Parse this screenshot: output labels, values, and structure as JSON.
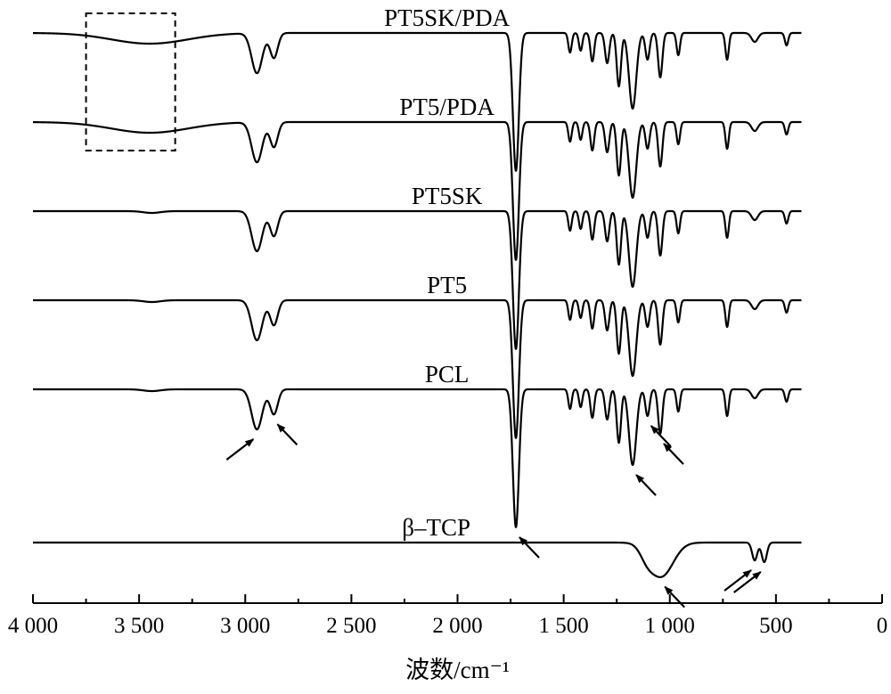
{
  "chart_data": {
    "type": "line",
    "title": "",
    "xlabel": "波数/cm⁻¹",
    "ylabel": "",
    "xlim": [
      4000,
      0
    ],
    "x_direction": "reversed",
    "grid": false,
    "xticks": [
      4000,
      3500,
      3000,
      2500,
      2000,
      1500,
      1000,
      500,
      0
    ],
    "xtick_labels": [
      "4 000",
      "3 500",
      "3 000",
      "2 500",
      "2 000",
      "1 500",
      "1 000",
      "500",
      "0"
    ],
    "x_range_measured": [
      4000,
      380
    ],
    "series": [
      {
        "name": "PT5SK/PDA",
        "baseline": 4.0,
        "peaks": [
          {
            "center": 3450,
            "depth": 0.12,
            "width": 180
          },
          {
            "center": 2945,
            "depth": 0.45,
            "width": 25
          },
          {
            "center": 2865,
            "depth": 0.28,
            "width": 18
          },
          {
            "center": 1725,
            "depth": 1.55,
            "width": 14
          },
          {
            "center": 1470,
            "depth": 0.22,
            "width": 8
          },
          {
            "center": 1420,
            "depth": 0.2,
            "width": 8
          },
          {
            "center": 1365,
            "depth": 0.32,
            "width": 9
          },
          {
            "center": 1295,
            "depth": 0.34,
            "width": 10
          },
          {
            "center": 1240,
            "depth": 0.6,
            "width": 10
          },
          {
            "center": 1175,
            "depth": 0.85,
            "width": 17
          },
          {
            "center": 1105,
            "depth": 0.3,
            "width": 10
          },
          {
            "center": 1045,
            "depth": 0.5,
            "width": 10
          },
          {
            "center": 960,
            "depth": 0.25,
            "width": 8
          },
          {
            "center": 730,
            "depth": 0.3,
            "width": 8
          },
          {
            "center": 600,
            "depth": 0.1,
            "width": 15
          },
          {
            "center": 450,
            "depth": 0.14,
            "width": 8
          }
        ]
      },
      {
        "name": "PT5/PDA",
        "baseline": 3.0,
        "peaks": [
          {
            "center": 3450,
            "depth": 0.12,
            "width": 180
          },
          {
            "center": 2945,
            "depth": 0.45,
            "width": 25
          },
          {
            "center": 2865,
            "depth": 0.28,
            "width": 18
          },
          {
            "center": 1725,
            "depth": 1.55,
            "width": 14
          },
          {
            "center": 1470,
            "depth": 0.22,
            "width": 8
          },
          {
            "center": 1420,
            "depth": 0.2,
            "width": 8
          },
          {
            "center": 1365,
            "depth": 0.32,
            "width": 9
          },
          {
            "center": 1295,
            "depth": 0.34,
            "width": 10
          },
          {
            "center": 1240,
            "depth": 0.6,
            "width": 10
          },
          {
            "center": 1175,
            "depth": 0.85,
            "width": 17
          },
          {
            "center": 1105,
            "depth": 0.3,
            "width": 10
          },
          {
            "center": 1045,
            "depth": 0.5,
            "width": 10
          },
          {
            "center": 960,
            "depth": 0.25,
            "width": 8
          },
          {
            "center": 730,
            "depth": 0.3,
            "width": 8
          },
          {
            "center": 600,
            "depth": 0.1,
            "width": 15
          },
          {
            "center": 450,
            "depth": 0.14,
            "width": 8
          }
        ]
      },
      {
        "name": "PT5SK",
        "baseline": 2.0,
        "peaks": [
          {
            "center": 3440,
            "depth": 0.02,
            "width": 40
          },
          {
            "center": 2945,
            "depth": 0.45,
            "width": 25
          },
          {
            "center": 2865,
            "depth": 0.28,
            "width": 18
          },
          {
            "center": 1725,
            "depth": 1.55,
            "width": 14
          },
          {
            "center": 1470,
            "depth": 0.22,
            "width": 8
          },
          {
            "center": 1420,
            "depth": 0.2,
            "width": 8
          },
          {
            "center": 1365,
            "depth": 0.32,
            "width": 9
          },
          {
            "center": 1295,
            "depth": 0.34,
            "width": 10
          },
          {
            "center": 1240,
            "depth": 0.6,
            "width": 10
          },
          {
            "center": 1175,
            "depth": 0.85,
            "width": 17
          },
          {
            "center": 1105,
            "depth": 0.3,
            "width": 10
          },
          {
            "center": 1045,
            "depth": 0.5,
            "width": 10
          },
          {
            "center": 960,
            "depth": 0.25,
            "width": 8
          },
          {
            "center": 730,
            "depth": 0.3,
            "width": 8
          },
          {
            "center": 600,
            "depth": 0.1,
            "width": 15
          },
          {
            "center": 450,
            "depth": 0.14,
            "width": 8
          }
        ]
      },
      {
        "name": "PT5",
        "baseline": 1.0,
        "peaks": [
          {
            "center": 3440,
            "depth": 0.02,
            "width": 40
          },
          {
            "center": 2945,
            "depth": 0.45,
            "width": 25
          },
          {
            "center": 2865,
            "depth": 0.28,
            "width": 18
          },
          {
            "center": 1725,
            "depth": 1.55,
            "width": 14
          },
          {
            "center": 1470,
            "depth": 0.22,
            "width": 8
          },
          {
            "center": 1420,
            "depth": 0.2,
            "width": 8
          },
          {
            "center": 1365,
            "depth": 0.32,
            "width": 9
          },
          {
            "center": 1295,
            "depth": 0.34,
            "width": 10
          },
          {
            "center": 1240,
            "depth": 0.6,
            "width": 10
          },
          {
            "center": 1175,
            "depth": 0.85,
            "width": 17
          },
          {
            "center": 1105,
            "depth": 0.3,
            "width": 10
          },
          {
            "center": 1045,
            "depth": 0.5,
            "width": 10
          },
          {
            "center": 960,
            "depth": 0.25,
            "width": 8
          },
          {
            "center": 730,
            "depth": 0.3,
            "width": 8
          },
          {
            "center": 600,
            "depth": 0.1,
            "width": 15
          },
          {
            "center": 450,
            "depth": 0.14,
            "width": 8
          }
        ]
      },
      {
        "name": "PCL",
        "baseline": 0.0,
        "peaks": [
          {
            "center": 3440,
            "depth": 0.02,
            "width": 40
          },
          {
            "center": 2945,
            "depth": 0.45,
            "width": 25
          },
          {
            "center": 2865,
            "depth": 0.28,
            "width": 18
          },
          {
            "center": 1725,
            "depth": 1.55,
            "width": 14
          },
          {
            "center": 1470,
            "depth": 0.22,
            "width": 8
          },
          {
            "center": 1420,
            "depth": 0.2,
            "width": 8
          },
          {
            "center": 1365,
            "depth": 0.32,
            "width": 9
          },
          {
            "center": 1295,
            "depth": 0.34,
            "width": 10
          },
          {
            "center": 1240,
            "depth": 0.6,
            "width": 10
          },
          {
            "center": 1175,
            "depth": 0.85,
            "width": 17
          },
          {
            "center": 1105,
            "depth": 0.3,
            "width": 10
          },
          {
            "center": 1045,
            "depth": 0.5,
            "width": 10
          },
          {
            "center": 960,
            "depth": 0.25,
            "width": 8
          },
          {
            "center": 730,
            "depth": 0.3,
            "width": 8
          },
          {
            "center": 600,
            "depth": 0.1,
            "width": 15
          },
          {
            "center": 450,
            "depth": 0.14,
            "width": 8
          }
        ]
      },
      {
        "name": "β–TCP",
        "baseline": -1.72,
        "peaks": [
          {
            "center": 1040,
            "depth": 0.38,
            "width": 55
          },
          {
            "center": 1110,
            "depth": 0.1,
            "width": 30
          },
          {
            "center": 600,
            "depth": 0.2,
            "width": 12
          },
          {
            "center": 555,
            "depth": 0.22,
            "width": 12
          }
        ]
      }
    ],
    "annotations": {
      "dashed_box": {
        "x_range": [
          3750,
          3330
        ],
        "series": [
          "PT5SK/PDA",
          "PT5/PDA"
        ]
      },
      "arrows": [
        {
          "series": "PCL",
          "target_wavenumber": 2945,
          "direction": "from-lower-left"
        },
        {
          "series": "PCL",
          "target_wavenumber": 2865,
          "direction": "from-lower-right"
        },
        {
          "series": "PCL",
          "target_wavenumber": 1725,
          "direction": "from-lower-right"
        },
        {
          "series": "PCL",
          "target_wavenumber": 1175,
          "direction": "from-lower-right"
        },
        {
          "series": "PCL",
          "target_wavenumber": 1105,
          "direction": "from-lower-right"
        },
        {
          "series": "PCL",
          "target_wavenumber": 1045,
          "direction": "from-lower-right"
        },
        {
          "series": "β–TCP",
          "target_wavenumber": 1040,
          "direction": "from-lower-right"
        },
        {
          "series": "β–TCP",
          "target_wavenumber": 600,
          "direction": "from-lower-left"
        },
        {
          "series": "β–TCP",
          "target_wavenumber": 555,
          "direction": "from-lower-left"
        }
      ]
    }
  }
}
